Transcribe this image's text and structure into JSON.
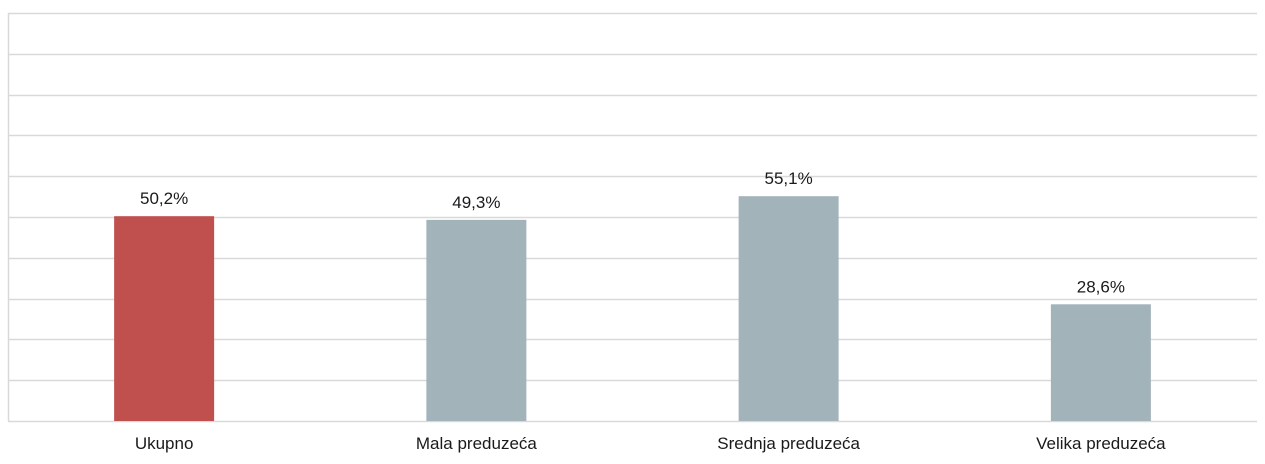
{
  "chart_data": {
    "type": "bar",
    "title": "",
    "xlabel": "",
    "ylabel": "",
    "categories": [
      "Ukupno",
      "Mala preduzeća",
      "Srednja preduzeća",
      "Velika preduzeća"
    ],
    "values": [
      50.2,
      49.3,
      55.1,
      28.6
    ],
    "data_labels": [
      "50,2%",
      "49,3%",
      "55,1%",
      "28,6%"
    ],
    "ylim": [
      0,
      100
    ],
    "y_gridline_step": 10,
    "grid": true,
    "y_axis_visible": false,
    "legend": "none",
    "colors": {
      "highlight": "#c0504d",
      "default": "#a2b3ba",
      "grid": "#d9d9d9"
    },
    "highlight_index": 0
  }
}
